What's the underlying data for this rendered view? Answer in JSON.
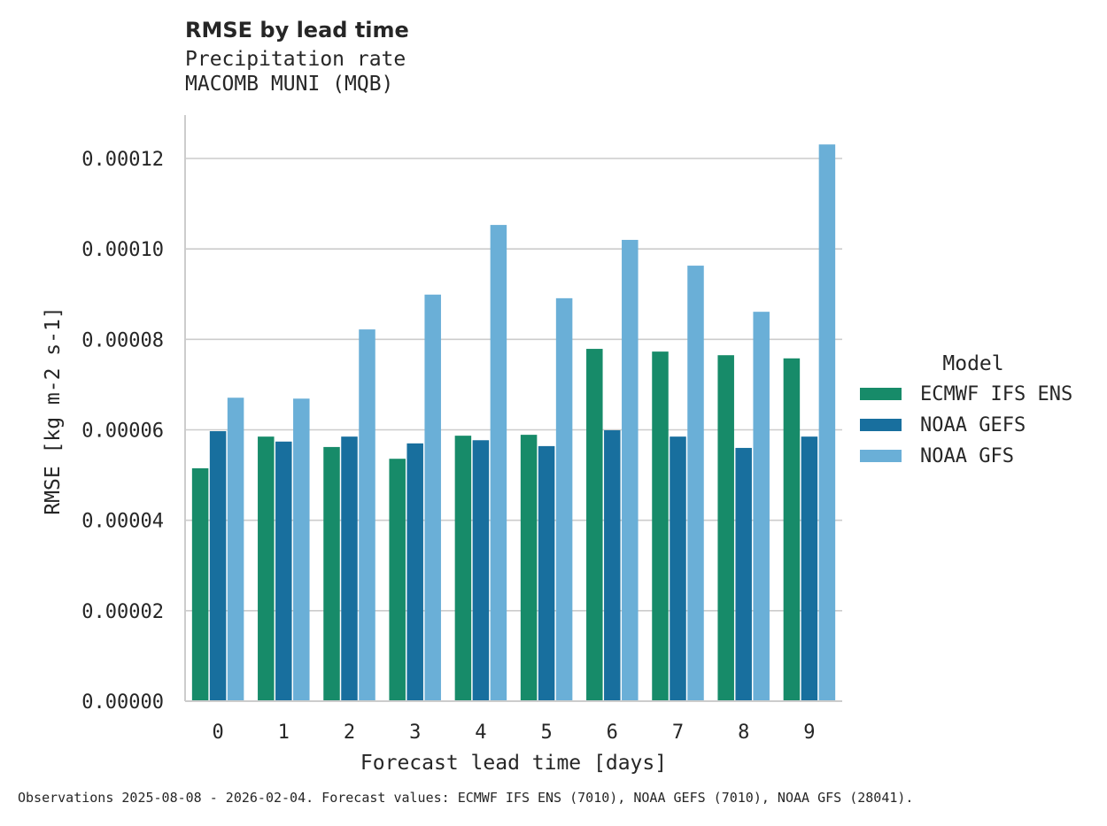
{
  "chart_data": {
    "type": "bar",
    "title": "RMSE by lead time",
    "subtitle": "Precipitation rate",
    "subtitle2": "MACOMB MUNI (MQB)",
    "xlabel": "Forecast lead time [days]",
    "ylabel": "RMSE [kg m-2 s-1]",
    "ylim": [
      0,
      0.00013
    ],
    "yticks": [
      0,
      2e-05,
      4e-05,
      6e-05,
      8e-05,
      0.0001,
      0.00012
    ],
    "ytick_labels": [
      "0.00000",
      "0.00002",
      "0.00004",
      "0.00006",
      "0.00008",
      "0.00010",
      "0.00012"
    ],
    "grid": "horizontal",
    "categories": [
      "0",
      "1",
      "2",
      "3",
      "4",
      "5",
      "6",
      "7",
      "8",
      "9"
    ],
    "legend": {
      "title": "Model",
      "placement": "center-right"
    },
    "series": [
      {
        "name": "ECMWF IFS ENS",
        "color": "#178b69",
        "values": [
          5.15e-05,
          5.85e-05,
          5.62e-05,
          5.36e-05,
          5.87e-05,
          5.89e-05,
          7.79e-05,
          7.73e-05,
          7.65e-05,
          7.58e-05
        ]
      },
      {
        "name": "NOAA GEFS",
        "color": "#186f9e",
        "values": [
          5.97e-05,
          5.74e-05,
          5.85e-05,
          5.7e-05,
          5.77e-05,
          5.64e-05,
          5.99e-05,
          5.85e-05,
          5.6e-05,
          5.85e-05
        ]
      },
      {
        "name": "NOAA GFS",
        "color": "#6aafd7",
        "values": [
          6.71e-05,
          6.69e-05,
          8.22e-05,
          8.99e-05,
          0.0001053,
          8.91e-05,
          0.000102,
          9.63e-05,
          8.61e-05,
          0.0001231
        ]
      }
    ],
    "footnote": "Observations 2025-08-08 - 2026-02-04. Forecast values: ECMWF IFS ENS (7010), NOAA GEFS (7010), NOAA GFS (28041)."
  }
}
